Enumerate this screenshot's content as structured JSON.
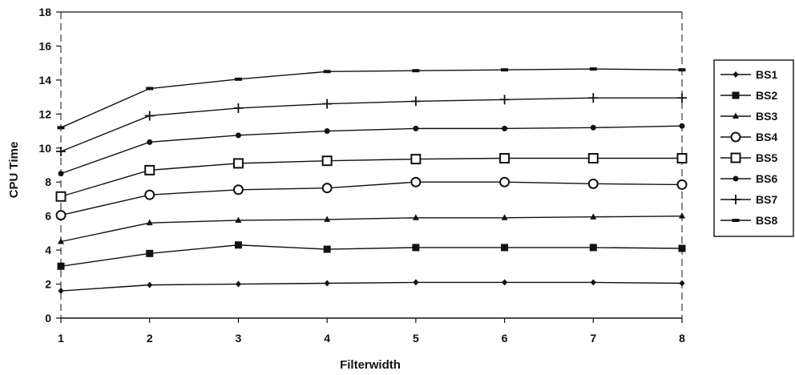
{
  "chart_data": {
    "type": "line",
    "title": "",
    "xlabel": "Filterwidth",
    "ylabel": "CPU Time",
    "x": [
      1,
      2,
      3,
      4,
      5,
      6,
      7,
      8
    ],
    "xlim": [
      1,
      8
    ],
    "ylim": [
      0,
      18
    ],
    "yticks": [
      0,
      2,
      4,
      6,
      8,
      10,
      12,
      14,
      16,
      18
    ],
    "grid": false,
    "legend_position": "right",
    "line_color": "#111111",
    "series": [
      {
        "name": "BS1",
        "marker": "diamond",
        "values": [
          1.6,
          1.95,
          2.0,
          2.05,
          2.1,
          2.1,
          2.1,
          2.05
        ]
      },
      {
        "name": "BS2",
        "marker": "filled-square",
        "values": [
          3.05,
          3.8,
          4.3,
          4.05,
          4.15,
          4.15,
          4.15,
          4.1
        ]
      },
      {
        "name": "BS3",
        "marker": "triangle",
        "values": [
          4.5,
          5.6,
          5.75,
          5.8,
          5.9,
          5.9,
          5.95,
          6.0
        ]
      },
      {
        "name": "BS4",
        "marker": "open-circle",
        "values": [
          6.05,
          7.25,
          7.55,
          7.65,
          8.0,
          8.0,
          7.9,
          7.85
        ]
      },
      {
        "name": "BS5",
        "marker": "open-square",
        "values": [
          7.15,
          8.7,
          9.1,
          9.25,
          9.35,
          9.4,
          9.4,
          9.4
        ]
      },
      {
        "name": "BS6",
        "marker": "filled-circle",
        "values": [
          8.5,
          10.35,
          10.75,
          11.0,
          11.15,
          11.15,
          11.2,
          11.3
        ]
      },
      {
        "name": "BS7",
        "marker": "plus",
        "values": [
          9.8,
          11.9,
          12.35,
          12.6,
          12.75,
          12.85,
          12.95,
          12.95
        ]
      },
      {
        "name": "BS8",
        "marker": "dash",
        "values": [
          11.2,
          13.5,
          14.05,
          14.5,
          14.55,
          14.6,
          14.65,
          14.6
        ]
      }
    ]
  }
}
